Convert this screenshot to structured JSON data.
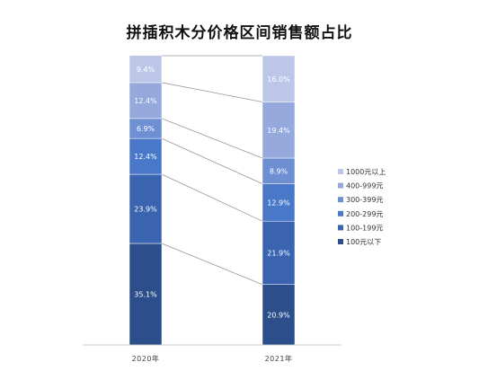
{
  "chart_data": {
    "type": "bar",
    "stacked": true,
    "percent": true,
    "title": "拼插积木分价格区间销售额占比",
    "categories": [
      "2020年",
      "2021年"
    ],
    "series": [
      {
        "name": "100元以下",
        "values": [
          35.1,
          20.9
        ],
        "labels": [
          "35.1%",
          "20.9%"
        ],
        "color": "#2c4f8c"
      },
      {
        "name": "100-199元",
        "values": [
          23.9,
          21.9
        ],
        "labels": [
          "23.9%",
          "21.9%"
        ],
        "color": "#3a63b0"
      },
      {
        "name": "200-299元",
        "values": [
          12.4,
          12.9
        ],
        "labels": [
          "12.4%",
          "12.9%"
        ],
        "color": "#4a78c8"
      },
      {
        "name": "300-399元",
        "values": [
          6.9,
          8.9
        ],
        "labels": [
          "6.9%",
          "8.9%"
        ],
        "color": "#6f8fd3"
      },
      {
        "name": "400-999元",
        "values": [
          12.4,
          19.4
        ],
        "labels": [
          "12.4%",
          "19.4%"
        ],
        "color": "#95a9dc"
      },
      {
        "name": "1000元以上",
        "values": [
          9.4,
          16.0
        ],
        "labels": [
          "9.4%",
          "16.0%"
        ],
        "color": "#bcc7e8"
      }
    ],
    "ylim": [
      0,
      100
    ],
    "legend": "right",
    "grid": false,
    "series_lines": true
  }
}
